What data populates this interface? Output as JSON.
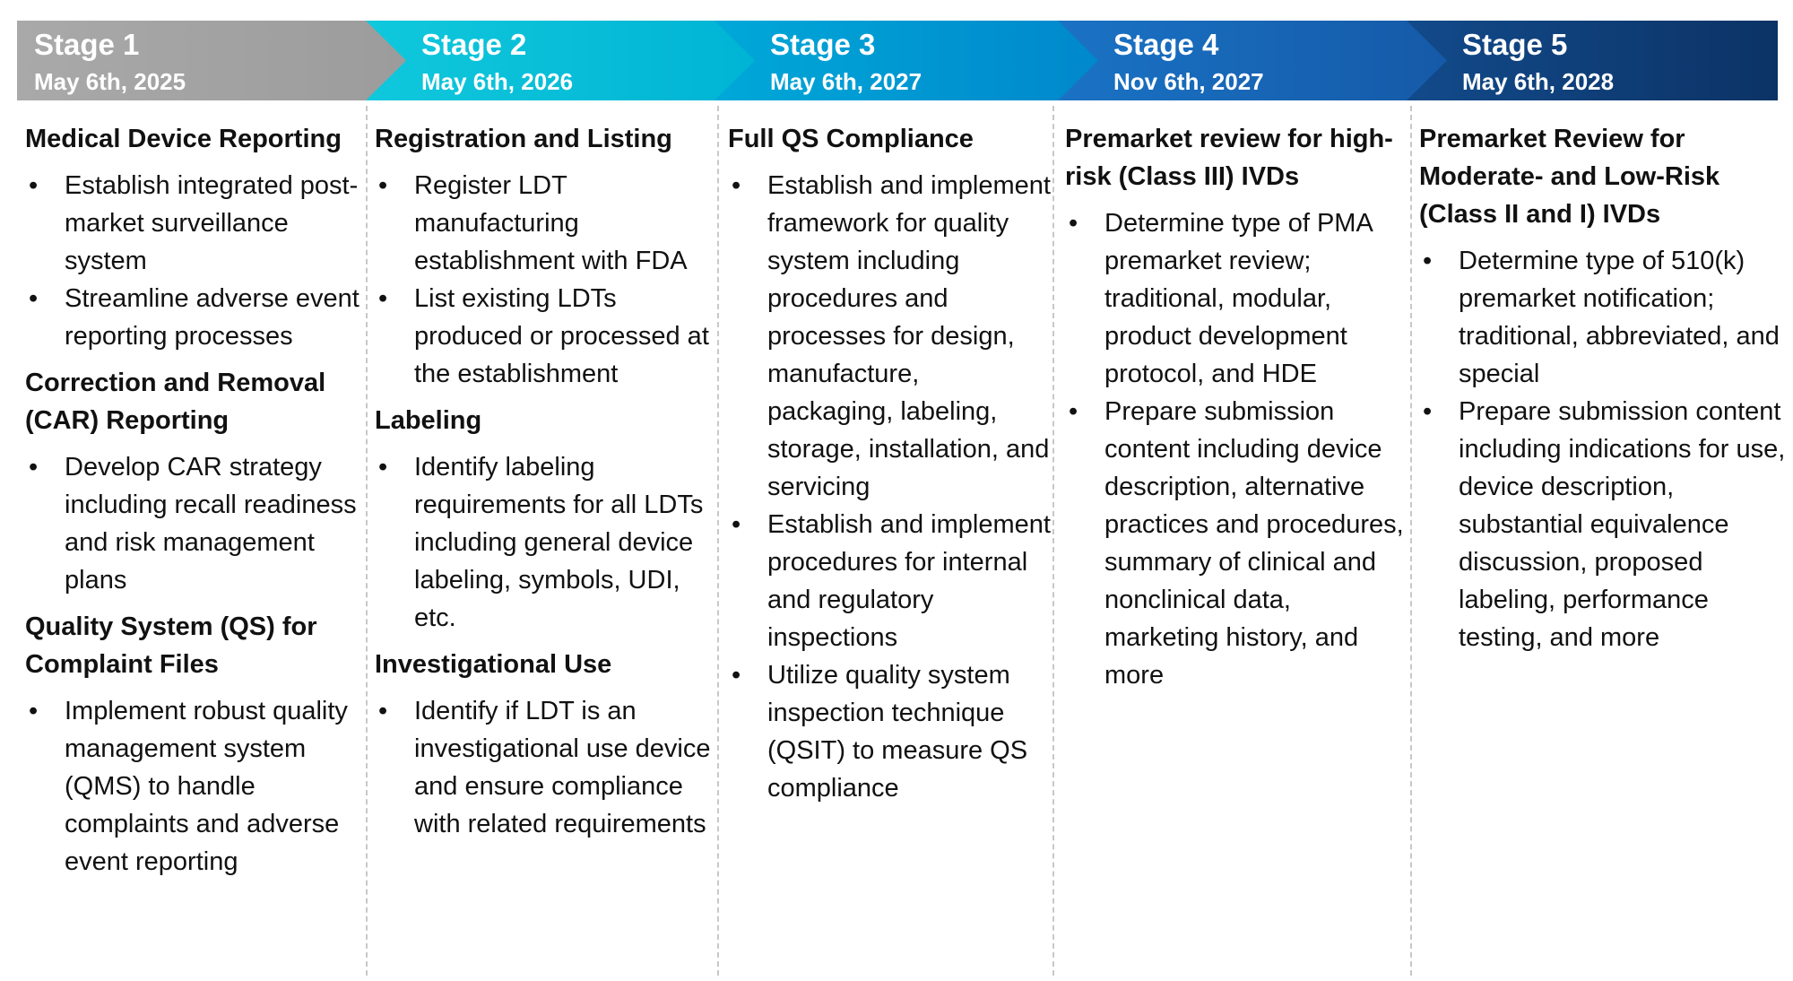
{
  "stages": [
    {
      "title": "Stage 1",
      "date": "May 6th, 2025",
      "sections": [
        {
          "heading": "Medical Device Reporting",
          "bullets": [
            "Establish integrated post-market surveillance system",
            "Streamline adverse event reporting processes"
          ]
        },
        {
          "heading": "Correction and Removal (CAR) Reporting",
          "bullets": [
            "Develop CAR strategy including recall readiness and risk management plans"
          ]
        },
        {
          "heading": "Quality System (QS) for Complaint Files",
          "bullets": [
            "Implement robust quality management system (QMS) to handle complaints and adverse event reporting"
          ]
        }
      ]
    },
    {
      "title": "Stage 2",
      "date": "May 6th, 2026",
      "sections": [
        {
          "heading": "Registration and Listing",
          "bullets": [
            "Register LDT manufacturing establishment with FDA",
            "List existing LDTs produced or processed at the establishment"
          ]
        },
        {
          "heading": "Labeling",
          "bullets": [
            "Identify labeling requirements for all LDTs including general device labeling, symbols, UDI, etc."
          ]
        },
        {
          "heading": "Investigational Use",
          "bullets": [
            "Identify if LDT is an investigational use device and ensure compliance with related requirements"
          ]
        }
      ]
    },
    {
      "title": "Stage 3",
      "date": "May 6th, 2027",
      "sections": [
        {
          "heading": "Full QS Compliance",
          "bullets": [
            "Establish and implement framework for quality system including procedures and processes for design, manufacture, packaging, labeling, storage, installation, and servicing",
            "Establish and implement procedures for internal and regulatory inspections",
            "Utilize quality system inspection technique (QSIT) to measure QS compliance"
          ]
        }
      ]
    },
    {
      "title": "Stage 4",
      "date": "Nov 6th, 2027",
      "sections": [
        {
          "heading": "Premarket review for high-risk (Class III) IVDs",
          "bullets": [
            "Determine type of PMA premarket review; traditional, modular, product development protocol, and HDE",
            "Prepare submission content including device description, alternative practices and procedures, summary of clinical and nonclinical data, marketing history, and more"
          ]
        }
      ]
    },
    {
      "title": "Stage 5",
      "date": "May 6th, 2028",
      "sections": [
        {
          "heading": "Premarket Review for Moderate- and Low-Risk (Class II and I) IVDs",
          "bullets": [
            "Determine type of 510(k) premarket notification; traditional, abbreviated, and special",
            "Prepare submission content including indications for use, device description, substantial equivalence discussion, proposed labeling, performance testing, and more"
          ]
        }
      ]
    }
  ]
}
